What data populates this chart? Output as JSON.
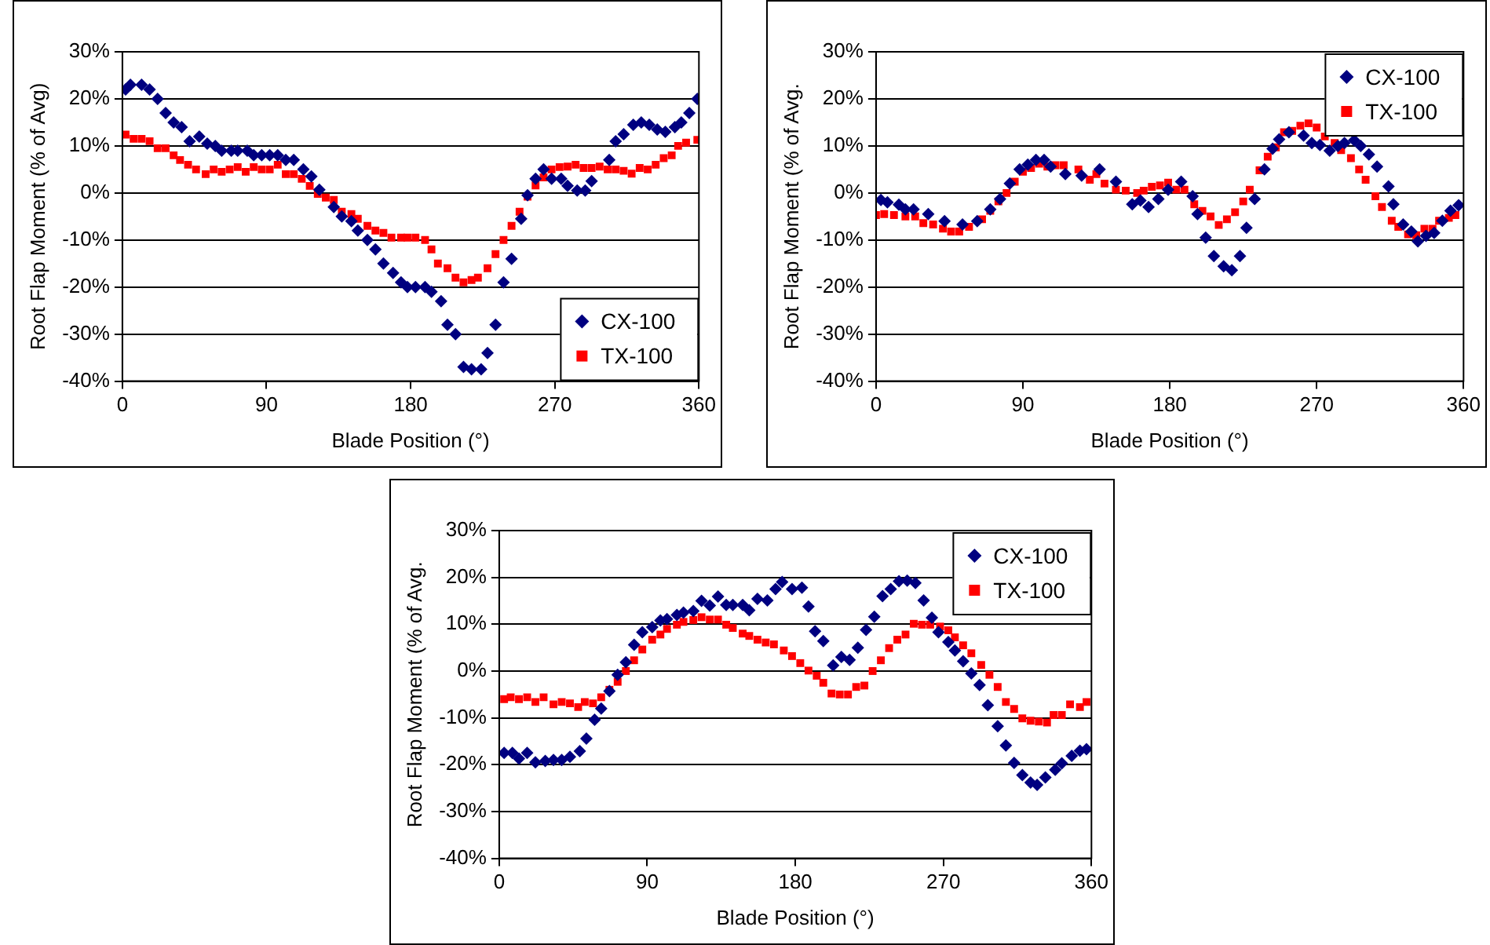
{
  "chart_data": [
    {
      "type": "scatter",
      "xlabel": "Blade Position (°)",
      "ylabel": "Root Flap Moment (% of Avg)",
      "xlim": [
        0,
        360
      ],
      "xticks": [
        0,
        90,
        180,
        270,
        360
      ],
      "ylim": [
        -40,
        30
      ],
      "yticks": [
        {
          "value": -40,
          "label": "-40%"
        },
        {
          "value": -30,
          "label": "-30%"
        },
        {
          "value": -20,
          "label": "-20%"
        },
        {
          "value": -10,
          "label": "-10%"
        },
        {
          "value": 0,
          "label": "0%"
        },
        {
          "value": 10,
          "label": "10%"
        },
        {
          "value": 20,
          "label": "20%"
        },
        {
          "value": 30,
          "label": "30%"
        }
      ],
      "grid": "y",
      "legend": "bottom right",
      "series": [
        {
          "name": "CX-100",
          "color": "#000080",
          "marker": "diamond",
          "x": [
            2,
            5,
            12,
            17,
            22,
            27,
            32,
            37,
            42,
            48,
            53,
            58,
            62,
            68,
            72,
            78,
            82,
            87,
            92,
            97,
            102,
            107,
            113,
            118,
            123,
            132,
            137,
            143,
            147,
            153,
            158,
            163,
            169,
            174,
            178,
            183,
            189,
            193,
            199,
            203,
            208,
            213,
            218,
            224,
            228,
            233,
            238,
            243,
            249,
            253,
            258,
            263,
            268,
            274,
            278,
            284,
            289,
            293,
            304,
            308,
            313,
            319,
            324,
            329,
            334,
            339,
            345,
            349,
            354,
            359
          ],
          "values": [
            22,
            23,
            23,
            22,
            20,
            17,
            15,
            14,
            11,
            12,
            10.5,
            10,
            9,
            9,
            9,
            9,
            8,
            8,
            8,
            8,
            7,
            7,
            5,
            3.5,
            0.7,
            -3,
            -5,
            -6,
            -8,
            -10,
            -12,
            -15,
            -17,
            -19,
            -20,
            -20,
            -20,
            -21,
            -23,
            -28,
            -30,
            -37,
            -37.5,
            -37.5,
            -34,
            -28,
            -19,
            -14,
            -5.5,
            -0.5,
            3,
            5,
            3,
            3,
            1.5,
            0.5,
            0.5,
            2.5,
            7,
            11,
            12.5,
            14.5,
            15,
            14.5,
            13.5,
            13,
            14,
            15,
            17,
            20
          ]
        },
        {
          "name": "TX-100",
          "color": "#ff0000",
          "marker": "square",
          "x": [
            2,
            7,
            12,
            17,
            22,
            27,
            32,
            36,
            41,
            46,
            52,
            57,
            62,
            67,
            72,
            77,
            82,
            87,
            92,
            97,
            102,
            107,
            112,
            117,
            122,
            127,
            132,
            137,
            143,
            147,
            153,
            158,
            163,
            168,
            174,
            178,
            183,
            189,
            193,
            197,
            203,
            208,
            213,
            218,
            222,
            228,
            233,
            238,
            243,
            248,
            253,
            258,
            263,
            268,
            273,
            278,
            283,
            288,
            293,
            298,
            303,
            308,
            313,
            318,
            323,
            328,
            333,
            338,
            343,
            347,
            352,
            359
          ],
          "values": [
            12.4,
            11.5,
            11.5,
            11,
            9.5,
            9.5,
            8,
            7,
            6,
            5,
            4,
            5,
            4.5,
            5,
            5.5,
            4.5,
            5.5,
            5,
            5,
            6,
            4,
            4,
            3,
            1.5,
            -0.2,
            -1,
            -1.5,
            -4,
            -4.5,
            -5.5,
            -7,
            -8,
            -8.5,
            -9.5,
            -9.5,
            -9.5,
            -9.5,
            -10,
            -12,
            -15,
            -16,
            -18,
            -19,
            -18.5,
            -18,
            -16,
            -13,
            -10,
            -7,
            -4,
            -0.8,
            1.6,
            3.3,
            5,
            5.5,
            5.6,
            6,
            5.3,
            5.3,
            5.6,
            5,
            5,
            4.7,
            4.1,
            5.3,
            5,
            6,
            7.4,
            8,
            10,
            10.7,
            11.3
          ]
        }
      ]
    },
    {
      "type": "scatter",
      "xlabel": "Blade Position (°)",
      "ylabel": "Root Flap Moment (% of Avg.",
      "xlim": [
        0,
        360
      ],
      "xticks": [
        0,
        90,
        180,
        270,
        360
      ],
      "ylim": [
        -40,
        30
      ],
      "yticks": [
        {
          "value": -40,
          "label": "-40%"
        },
        {
          "value": -30,
          "label": "-30%"
        },
        {
          "value": -20,
          "label": "-20%"
        },
        {
          "value": -10,
          "label": "-10%"
        },
        {
          "value": 0,
          "label": "0%"
        },
        {
          "value": 10,
          "label": "10%"
        },
        {
          "value": 20,
          "label": "20%"
        },
        {
          "value": 30,
          "label": "30%"
        }
      ],
      "grid": "y",
      "legend": "top right",
      "series": [
        {
          "name": "CX-100",
          "color": "#000080",
          "marker": "diamond",
          "x": [
            3,
            7,
            14,
            18,
            23,
            32,
            42,
            53,
            62,
            70,
            76,
            82,
            88,
            93,
            98,
            103,
            107,
            116,
            126,
            137,
            147,
            157,
            162,
            167,
            173,
            179,
            187,
            194,
            197,
            202,
            207,
            213,
            218,
            223,
            227,
            232,
            238,
            243,
            247,
            253,
            262,
            267,
            272,
            278,
            283,
            287,
            293,
            297,
            302,
            307,
            314,
            317,
            323,
            328,
            332,
            337,
            342,
            347,
            352,
            357
          ],
          "values": [
            -1.5,
            -2,
            -2.5,
            -3.5,
            -3.5,
            -4.5,
            -6,
            -6.7,
            -6,
            -3.5,
            -1.3,
            2,
            5,
            6,
            7,
            7,
            5.6,
            4,
            3.7,
            5,
            2.4,
            -2.4,
            -1.6,
            -3,
            -1.3,
            0.7,
            2.4,
            -0.7,
            -4.5,
            -9.5,
            -13.4,
            -15.6,
            -16.4,
            -13.4,
            -7.4,
            -1.3,
            5,
            9.4,
            11.4,
            12.9,
            12.2,
            10.6,
            10.2,
            9,
            10,
            10.6,
            11.2,
            10,
            8.2,
            5.6,
            1.4,
            -2.4,
            -6.7,
            -8.2,
            -10.3,
            -9.1,
            -8.5,
            -5.9,
            -3.8,
            -2.6
          ]
        },
        {
          "name": "TX-100",
          "color": "#ff0000",
          "marker": "square",
          "x": [
            0,
            5,
            11,
            18,
            24,
            29,
            35,
            41,
            46,
            51,
            57,
            65,
            70,
            75,
            80,
            85,
            90,
            95,
            100,
            105,
            110,
            115,
            124,
            131,
            135,
            140,
            147,
            153,
            160,
            164,
            169,
            174,
            179,
            184,
            189,
            195,
            200,
            205,
            210,
            215,
            220,
            225,
            229,
            235,
            240,
            245,
            250,
            255,
            260,
            265,
            270,
            275,
            281,
            285,
            291,
            296,
            300,
            306,
            310,
            316,
            320,
            326,
            331,
            336,
            341,
            345,
            351,
            355
          ],
          "values": [
            -4.7,
            -4.5,
            -4.7,
            -5,
            -5,
            -6.4,
            -6.7,
            -7.6,
            -8.2,
            -8.2,
            -7.2,
            -5.6,
            -3.8,
            -1.8,
            0,
            2.4,
            4.5,
            5.3,
            6.2,
            5.6,
            5.9,
            5.9,
            5,
            2.8,
            4,
            2,
            0.7,
            0.5,
            0,
            0.5,
            1.3,
            1.6,
            2.2,
            0.7,
            0.7,
            -2.4,
            -3.8,
            -5,
            -6.8,
            -5.6,
            -4.1,
            -1.8,
            0.7,
            4.8,
            7.7,
            9.7,
            12.9,
            13.2,
            14.3,
            14.8,
            13.9,
            12,
            10.6,
            9.1,
            7.4,
            5,
            2.8,
            -0.7,
            -3,
            -5.9,
            -7.2,
            -8.8,
            -9,
            -7.6,
            -7.6,
            -5.9,
            -5.3,
            -4.7
          ]
        }
      ]
    },
    {
      "type": "scatter",
      "xlabel": "Blade Position (°)",
      "ylabel": "Root Flap Moment (% of Avg.",
      "xlim": [
        0,
        360
      ],
      "xticks": [
        0,
        90,
        180,
        270,
        360
      ],
      "ylim": [
        -40,
        30
      ],
      "yticks": [
        {
          "value": -40,
          "label": "-40%"
        },
        {
          "value": -30,
          "label": "-30%"
        },
        {
          "value": -20,
          "label": "-20%"
        },
        {
          "value": -10,
          "label": "-10%"
        },
        {
          "value": 0,
          "label": "0%"
        },
        {
          "value": 10,
          "label": "10%"
        },
        {
          "value": 20,
          "label": "20%"
        },
        {
          "value": 30,
          "label": "30%"
        }
      ],
      "grid": "y",
      "legend": "top right",
      "series": [
        {
          "name": "CX-100",
          "color": "#000080",
          "marker": "diamond",
          "x": [
            3,
            8,
            12,
            17,
            22,
            28,
            33,
            38,
            43,
            49,
            53,
            58,
            62,
            67,
            72,
            77,
            82,
            87,
            93,
            98,
            102,
            108,
            112,
            118,
            123,
            128,
            133,
            138,
            142,
            148,
            152,
            157,
            163,
            168,
            172,
            178,
            184,
            188,
            192,
            197,
            203,
            208,
            213,
            218,
            223,
            228,
            233,
            238,
            243,
            248,
            253,
            258,
            263,
            267,
            273,
            277,
            282,
            287,
            292,
            297,
            303,
            308,
            313,
            318,
            323,
            327,
            332,
            338,
            342,
            348,
            353,
            357
          ],
          "values": [
            -17.5,
            -17.5,
            -18.7,
            -17.5,
            -19.5,
            -19.2,
            -19,
            -19,
            -18.3,
            -17.1,
            -14.4,
            -10.4,
            -8,
            -4.3,
            -0.8,
            1.9,
            5.6,
            8.3,
            9.4,
            10.8,
            11.1,
            12,
            12.5,
            12.8,
            15,
            14,
            15.9,
            14.1,
            14.1,
            14.1,
            13,
            15.4,
            15.1,
            17.5,
            19,
            17.5,
            17.8,
            13.8,
            8.5,
            6.4,
            1.2,
            3,
            2.4,
            5,
            8.8,
            11.6,
            16,
            17.5,
            19.2,
            19.3,
            18.8,
            15.1,
            11.4,
            8.3,
            6.2,
            4.4,
            2.1,
            -0.5,
            -3,
            -7.3,
            -11.8,
            -15.9,
            -19.6,
            -22.2,
            -23.8,
            -24.3,
            -22.7,
            -21.1,
            -19.7,
            -18.1,
            -17,
            -16.7
          ]
        },
        {
          "name": "TX-100",
          "color": "#ff0000",
          "marker": "square",
          "x": [
            3,
            7,
            12,
            17,
            22,
            27,
            33,
            38,
            43,
            48,
            52,
            57,
            62,
            67,
            72,
            77,
            82,
            87,
            93,
            98,
            102,
            108,
            112,
            118,
            123,
            128,
            133,
            138,
            142,
            148,
            152,
            157,
            162,
            167,
            173,
            178,
            183,
            188,
            193,
            197,
            202,
            207,
            212,
            217,
            222,
            227,
            232,
            237,
            242,
            247,
            252,
            257,
            262,
            268,
            273,
            277,
            282,
            287,
            293,
            298,
            303,
            308,
            313,
            318,
            323,
            328,
            333,
            337,
            342,
            347,
            353,
            357
          ],
          "values": [
            -6,
            -5.6,
            -6,
            -5.6,
            -6.6,
            -5.6,
            -7.1,
            -6.6,
            -6.9,
            -7.7,
            -6.6,
            -6.9,
            -5.6,
            -4,
            -2.3,
            0,
            2.3,
            4.6,
            6.7,
            7.8,
            9,
            9.9,
            10.5,
            10.9,
            11.5,
            11,
            11,
            9.9,
            9.2,
            8,
            7.5,
            6.7,
            6.1,
            5.7,
            4.4,
            3.2,
            1.7,
            0.1,
            -1,
            -2.5,
            -4.8,
            -5,
            -5,
            -3.4,
            -3.1,
            0,
            2.3,
            4.9,
            6.7,
            7.8,
            10.1,
            9.9,
            9.9,
            9.5,
            8.7,
            7.2,
            5.5,
            3.8,
            1.3,
            -0.8,
            -3.4,
            -6.6,
            -8.1,
            -10.1,
            -10.6,
            -10.8,
            -11,
            -9.4,
            -9.4,
            -7.1,
            -7.7,
            -6.6
          ]
        }
      ]
    }
  ]
}
